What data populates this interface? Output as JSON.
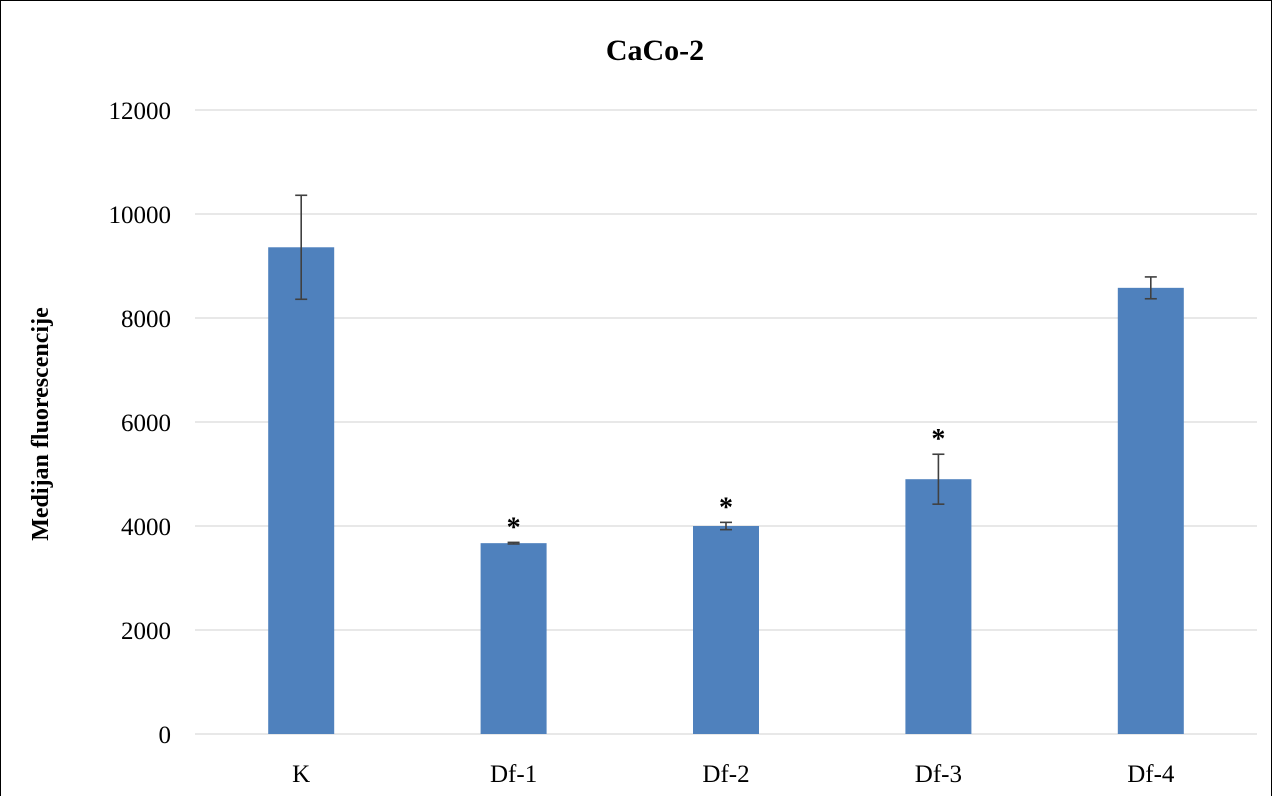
{
  "chart_data": {
    "type": "bar",
    "title": "CaCo-2",
    "xlabel": "",
    "ylabel": "Medijan fluorescencije",
    "categories": [
      "K",
      "Df-1",
      "Df-2",
      "Df-3",
      "Df-4"
    ],
    "values": [
      9360,
      3670,
      4000,
      4900,
      8580
    ],
    "error": [
      1000,
      15,
      70,
      480,
      210
    ],
    "annotations": [
      "",
      "*",
      "*",
      "*",
      ""
    ],
    "ylim": [
      0,
      12000
    ],
    "yticks": [
      "0",
      "2000",
      "4000",
      "6000",
      "8000",
      "10000",
      "12000"
    ],
    "grid": true,
    "legend": "none",
    "colors": {
      "bar": "#4F81BD",
      "error": "#404040",
      "grid": "#D9D9D9"
    }
  }
}
